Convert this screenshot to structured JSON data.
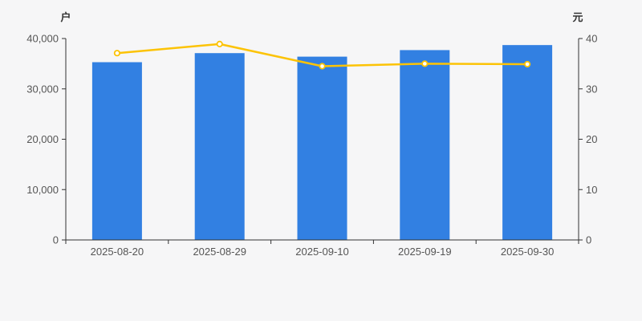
{
  "colors": {
    "background": "#f6f6f7",
    "bar": "#3280e2",
    "line": "#fcc306",
    "marker_fill": "#ffffff",
    "axis": "#333333",
    "tick_text": "#555555"
  },
  "chart_data": {
    "type": "bar",
    "title": "",
    "categories": [
      "2025-08-20",
      "2025-08-29",
      "2025-09-10",
      "2025-09-19",
      "2025-09-30"
    ],
    "series": [
      {
        "name": "户",
        "type": "bar",
        "axis": "left",
        "values": [
          35300,
          37100,
          36400,
          37700,
          38700
        ]
      },
      {
        "name": "元",
        "type": "line",
        "axis": "right",
        "values": [
          37.1,
          38.9,
          34.5,
          35.0,
          34.9
        ]
      }
    ],
    "left_axis": {
      "label": "户",
      "range": [
        0,
        40000
      ],
      "tick_labels": [
        "0",
        "10,000",
        "20,000",
        "30,000",
        "40,000"
      ]
    },
    "right_axis": {
      "label": "元",
      "range": [
        0,
        40
      ],
      "tick_labels": [
        "0",
        "10",
        "20",
        "30",
        "40"
      ]
    },
    "grid": "off",
    "legend": "none"
  }
}
